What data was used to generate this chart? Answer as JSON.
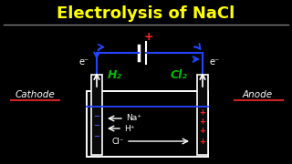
{
  "title": "Electrolysis of NaCl",
  "title_color": "#FFFF00",
  "bg_color": "#000000",
  "cathode_label": "Cathode",
  "anode_label": "Anode",
  "underline_color": "#CC2222",
  "h2_label": "H₂",
  "cl2_label": "Cl₂",
  "electrode_color": "#FFFFFF",
  "wire_color": "#2244FF",
  "arrow_color": "#FFFFFF",
  "plus_color": "#FF2222",
  "minus_color": "#5555FF",
  "gas_color": "#00BB00",
  "waterline_color": "#2244FF",
  "e_color": "#FFFFFF",
  "ion_color": "#FFFFFF",
  "title_fontsize": 13,
  "label_fontsize": 7.5
}
